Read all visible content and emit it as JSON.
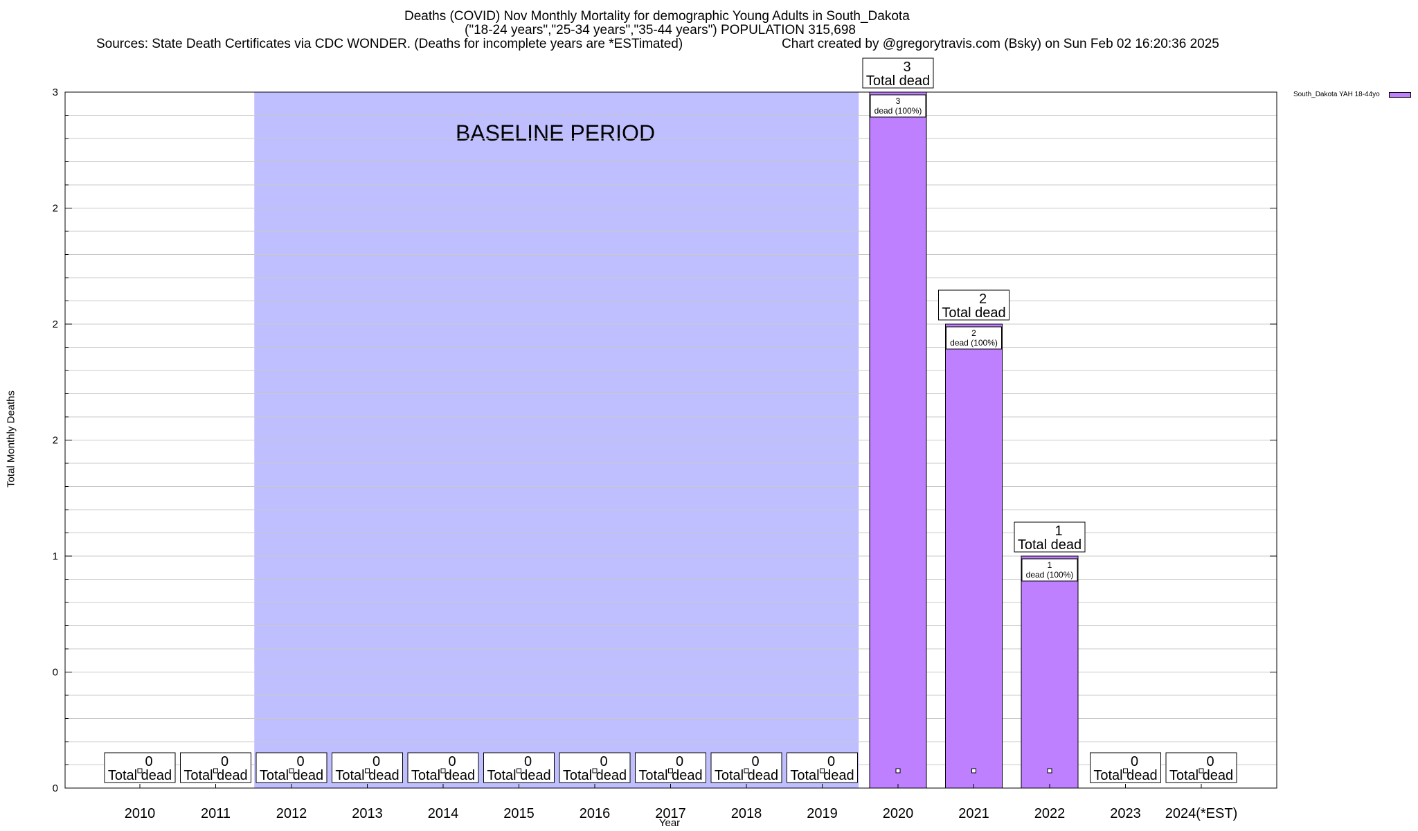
{
  "header": {
    "title_line1": "Deaths (COVID) Nov Monthly Mortality for demographic Young Adults in South_Dakota",
    "title_line2": "(\"18-24 years\",\"25-34 years\",\"35-44 years\") POPULATION 315,698",
    "sources": "Sources: State Death Certificates via CDC WONDER. (Deaths for incomplete years are *ESTimated)",
    "credit": "Chart created by @gregorytravis.com (Bsky) on Sun Feb 02 16:20:36 2025"
  },
  "chart_data": {
    "type": "bar",
    "categories": [
      "2010",
      "2011",
      "2012",
      "2013",
      "2014",
      "2015",
      "2016",
      "2017",
      "2018",
      "2019",
      "2020",
      "2021",
      "2022",
      "2023",
      "2024(*EST)"
    ],
    "series": [
      {
        "name": "South_Dakota YAH 18-44yo",
        "color": "#bf80ff",
        "values": [
          0,
          0,
          0,
          0,
          0,
          0,
          0,
          0,
          0,
          0,
          3,
          2,
          1,
          0,
          0
        ]
      }
    ],
    "total_labels": [
      {
        "value": "0",
        "caption": "Total dead"
      },
      {
        "value": "0",
        "caption": "Total dead"
      },
      {
        "value": "0",
        "caption": "Total dead"
      },
      {
        "value": "0",
        "caption": "Total dead"
      },
      {
        "value": "0",
        "caption": "Total dead"
      },
      {
        "value": "0",
        "caption": "Total dead"
      },
      {
        "value": "0",
        "caption": "Total dead"
      },
      {
        "value": "0",
        "caption": "Total dead"
      },
      {
        "value": "0",
        "caption": "Total dead"
      },
      {
        "value": "0",
        "caption": "Total dead"
      },
      {
        "value": "3",
        "caption": "Total dead"
      },
      {
        "value": "2",
        "caption": "Total dead"
      },
      {
        "value": "1",
        "caption": "Total dead"
      },
      {
        "value": "0",
        "caption": "Total dead"
      },
      {
        "value": "0",
        "caption": "Total dead"
      }
    ],
    "inner_labels": [
      null,
      null,
      null,
      null,
      null,
      null,
      null,
      null,
      null,
      null,
      {
        "value": "3",
        "caption": "dead (100%)"
      },
      {
        "value": "2",
        "caption": "dead (100%)"
      },
      {
        "value": "1",
        "caption": "dead (100%)"
      },
      null,
      null
    ],
    "ylabel": "Total Monthly Deaths",
    "xlabel": "Year",
    "ylim": [
      0,
      3
    ],
    "y_tick_values": [
      0,
      0.5,
      1,
      1.5,
      2,
      2.5,
      3
    ],
    "y_tick_labels": [
      "0",
      "0",
      "1",
      "2",
      "2",
      "2",
      "3"
    ],
    "baseline": {
      "label": "BASELINE PERIOD",
      "start_category": "2012",
      "end_category": "2019",
      "color": "#bfbfff"
    },
    "grid": true,
    "legend_position": "top-right"
  }
}
